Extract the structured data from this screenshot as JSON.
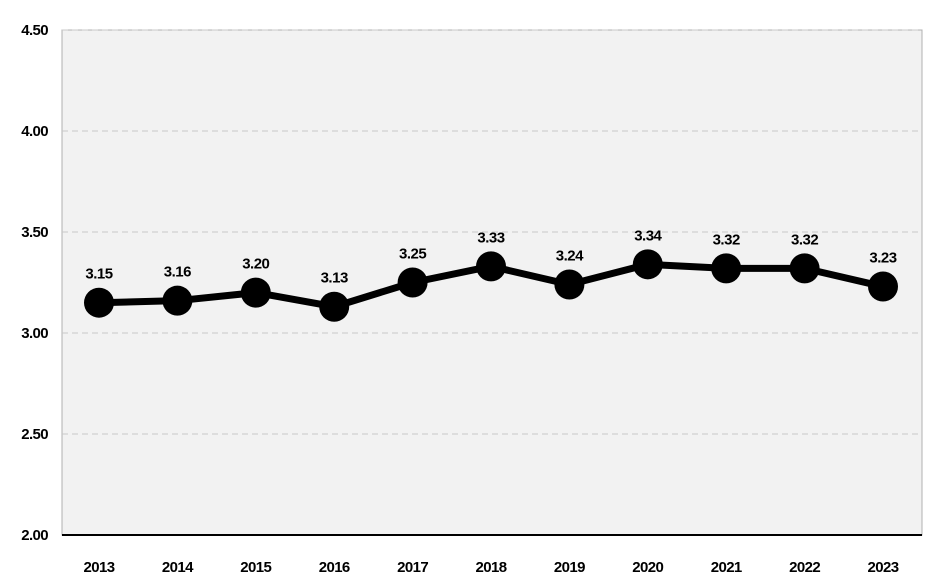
{
  "chart_data": {
    "type": "line",
    "title": "",
    "xlabel": "",
    "ylabel": "",
    "categories": [
      "2013",
      "2014",
      "2015",
      "2016",
      "2017",
      "2018",
      "2019",
      "2020",
      "2021",
      "2022",
      "2023"
    ],
    "values": [
      3.15,
      3.16,
      3.2,
      3.13,
      3.25,
      3.33,
      3.24,
      3.34,
      3.32,
      3.32,
      3.23
    ],
    "data_labels": [
      "3.15",
      "3.16",
      "3.20",
      "3.13",
      "3.25",
      "3.33",
      "3.24",
      "3.34",
      "3.32",
      "3.32",
      "3.23"
    ],
    "ylim": [
      2.0,
      4.5
    ],
    "yticks": [
      2.0,
      2.5,
      3.0,
      3.5,
      4.0,
      4.5
    ],
    "ytick_labels": [
      "2.00",
      "2.50",
      "3.00",
      "3.50",
      "4.00",
      "4.50"
    ],
    "grid": true,
    "legend": "none",
    "colors": {
      "line": "#000000",
      "marker": "#000000",
      "plot_background": "#f2f2f2",
      "grid": "#c8c8c8"
    }
  }
}
